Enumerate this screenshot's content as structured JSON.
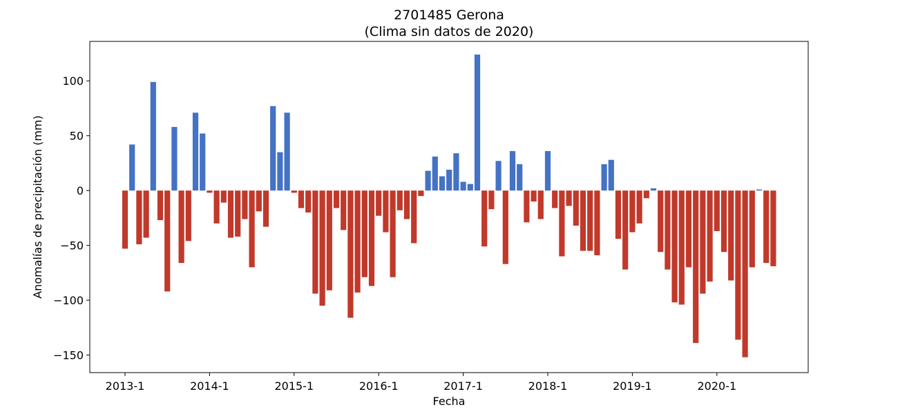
{
  "chart_data": {
    "type": "bar",
    "title": "2701485 Gerona",
    "subtitle": "(Clima sin datos de 2020)",
    "xlabel": "Fecha",
    "ylabel": "Anomalías de precipitación (mm)",
    "ylim": [
      -166,
      136
    ],
    "yticks": [
      100,
      50,
      0,
      -50,
      -100,
      -150
    ],
    "xticks": [
      "2013-1",
      "2014-1",
      "2015-1",
      "2016-1",
      "2017-1",
      "2018-1",
      "2019-1",
      "2020-1"
    ],
    "grid": false,
    "colors": {
      "positive": "#4472c4",
      "negative": "#c0392b"
    },
    "categories": [
      "2013-1",
      "2013-2",
      "2013-3",
      "2013-4",
      "2013-5",
      "2013-6",
      "2013-7",
      "2013-8",
      "2013-9",
      "2013-10",
      "2013-11",
      "2013-12",
      "2014-1",
      "2014-2",
      "2014-3",
      "2014-4",
      "2014-5",
      "2014-6",
      "2014-7",
      "2014-8",
      "2014-9",
      "2014-10",
      "2014-11",
      "2014-12",
      "2015-1",
      "2015-2",
      "2015-3",
      "2015-4",
      "2015-5",
      "2015-6",
      "2015-7",
      "2015-8",
      "2015-9",
      "2015-10",
      "2015-11",
      "2015-12",
      "2016-1",
      "2016-2",
      "2016-3",
      "2016-4",
      "2016-5",
      "2016-6",
      "2016-7",
      "2016-8",
      "2016-9",
      "2016-10",
      "2016-11",
      "2016-12",
      "2017-1",
      "2017-2",
      "2017-3",
      "2017-4",
      "2017-5",
      "2017-6",
      "2017-7",
      "2017-8",
      "2017-9",
      "2017-10",
      "2017-11",
      "2017-12",
      "2018-1",
      "2018-2",
      "2018-3",
      "2018-4",
      "2018-5",
      "2018-6",
      "2018-7",
      "2018-8",
      "2018-9",
      "2018-10",
      "2018-11",
      "2018-12",
      "2019-1",
      "2019-2",
      "2019-3",
      "2019-4",
      "2019-5",
      "2019-6",
      "2019-7",
      "2019-8",
      "2019-9",
      "2019-10",
      "2019-11",
      "2019-12",
      "2020-1",
      "2020-2",
      "2020-3",
      "2020-4",
      "2020-5",
      "2020-6",
      "2020-7",
      "2020-8",
      "2020-9"
    ],
    "values": [
      -53,
      42,
      -49,
      -43,
      99,
      -27,
      -92,
      58,
      -66,
      -46,
      71,
      52,
      -2,
      -30,
      -11,
      -43,
      -42,
      -26,
      -70,
      -19,
      -33,
      77,
      35,
      71,
      -2,
      -16,
      -20,
      -94,
      -105,
      -91,
      -16,
      -36,
      -116,
      -93,
      -79,
      -87,
      -23,
      -38,
      -79,
      -18,
      -26,
      -48,
      -5,
      18,
      31,
      13,
      19,
      34,
      8,
      6,
      124,
      -51,
      -17,
      27,
      -67,
      36,
      24,
      -29,
      -10,
      -26,
      36,
      -16,
      -60,
      -14,
      -32,
      -55,
      -55,
      -59,
      24,
      28,
      -44,
      -72,
      -38,
      -30,
      -7,
      2,
      -56,
      -72,
      -102,
      -104,
      -70,
      -139,
      -94,
      -83,
      -37,
      -56,
      -82,
      -136,
      -152,
      -70,
      1,
      -66,
      -69
    ]
  }
}
